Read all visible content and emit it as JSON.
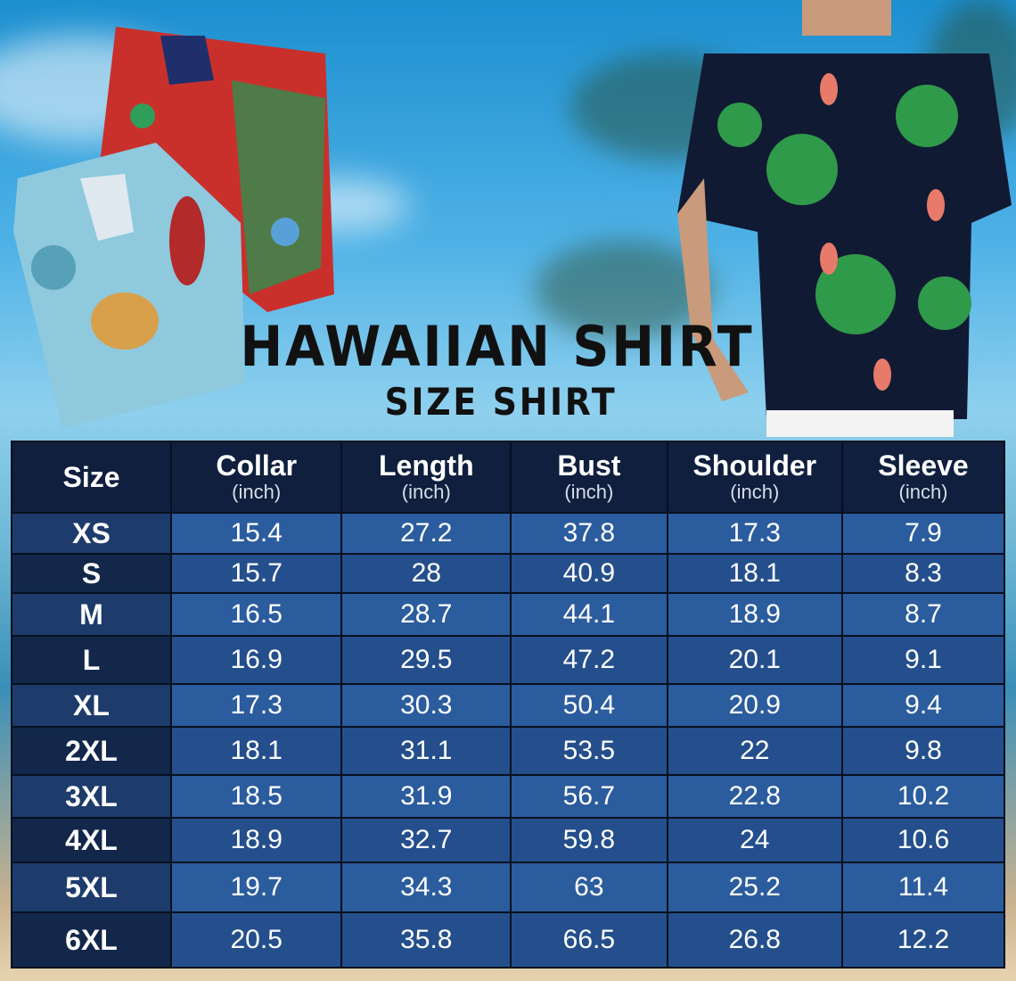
{
  "title": "HAWAIIAN SHIRT",
  "subtitle": "SIZE SHIRT",
  "colors": {
    "header": "#0f1f3d",
    "row_light": "#2b5c9e",
    "row_dark": "#244f8c",
    "size_col": "#12274a"
  },
  "table": {
    "headers": [
      {
        "label": "Size",
        "unit": ""
      },
      {
        "label": "Collar",
        "unit": "(inch)"
      },
      {
        "label": "Length",
        "unit": "(inch)"
      },
      {
        "label": "Bust",
        "unit": "(inch)"
      },
      {
        "label": "Shoulder",
        "unit": "(inch)"
      },
      {
        "label": "Sleeve",
        "unit": "(inch)"
      }
    ],
    "rows": [
      [
        "XS",
        "15.4",
        "27.2",
        "37.8",
        "17.3",
        "7.9"
      ],
      [
        "S",
        "15.7",
        "28",
        "40.9",
        "18.1",
        "8.3"
      ],
      [
        "M",
        "16.5",
        "28.7",
        "44.1",
        "18.9",
        "8.7"
      ],
      [
        "L",
        "16.9",
        "29.5",
        "47.2",
        "20.1",
        "9.1"
      ],
      [
        "XL",
        "17.3",
        "30.3",
        "50.4",
        "20.9",
        "9.4"
      ],
      [
        "2XL",
        "18.1",
        "31.1",
        "53.5",
        "22",
        "9.8"
      ],
      [
        "3XL",
        "18.5",
        "31.9",
        "56.7",
        "22.8",
        "10.2"
      ],
      [
        "4XL",
        "18.9",
        "32.7",
        "59.8",
        "24",
        "10.6"
      ],
      [
        "5XL",
        "19.7",
        "34.3",
        "63",
        "25.2",
        "11.4"
      ],
      [
        "6XL",
        "20.5",
        "35.8",
        "66.5",
        "26.8",
        "12.2"
      ]
    ]
  }
}
